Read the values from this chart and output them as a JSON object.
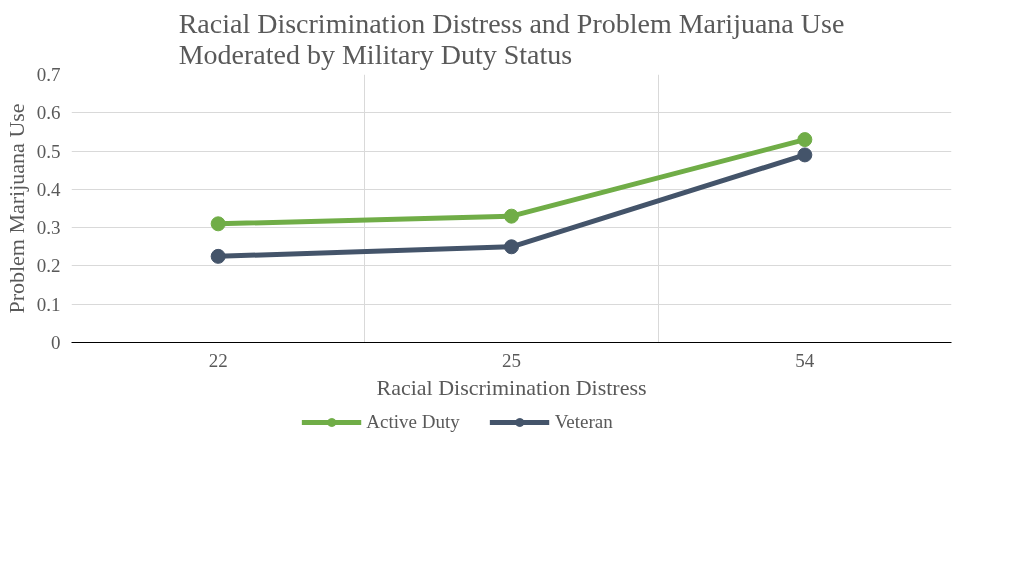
{
  "chart_data": {
    "type": "line",
    "title": "Racial Discrimination Distress and Problem Marijuana Use\nModerated by Military Duty Status",
    "xlabel": "Racial Discrimination Distress",
    "ylabel": "Problem Marijuana Use",
    "categories": [
      "22",
      "25",
      "54"
    ],
    "series": [
      {
        "name": "Active Duty",
        "color": "#70ad47",
        "values": [
          0.31,
          0.33,
          0.53
        ]
      },
      {
        "name": "Veteran",
        "color": "#44546a",
        "values": [
          0.225,
          0.25,
          0.49
        ]
      }
    ],
    "ylim": [
      0,
      0.7
    ],
    "yticks": [
      0,
      0.1,
      0.2,
      0.3,
      0.4,
      0.5,
      0.6,
      0.7
    ],
    "grid": true,
    "legend": "bottom",
    "marker": "circle",
    "line_style": "solid"
  }
}
